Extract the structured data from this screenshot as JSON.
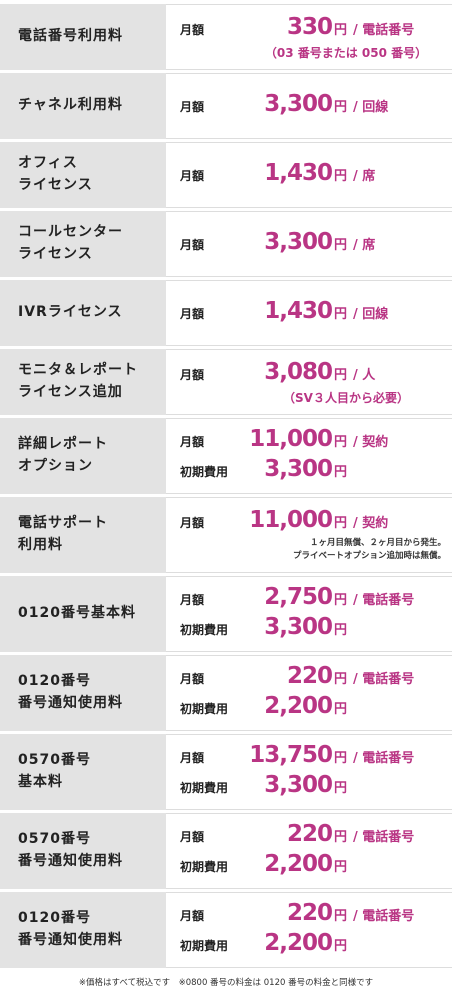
{
  "rows": [
    {
      "label": "電話番号利用料",
      "lines": [
        {
          "term": "月額",
          "amount": "330",
          "unit": "円",
          "per": "/ 電話番号"
        }
      ],
      "note": "（03 番号または 050 番号）"
    },
    {
      "label": "チャネル利用料",
      "lines": [
        {
          "term": "月額",
          "amount": "3,300",
          "unit": "円",
          "per": "/ 回線"
        }
      ]
    },
    {
      "label": "オフィス\nライセンス",
      "lines": [
        {
          "term": "月額",
          "amount": "1,430",
          "unit": "円",
          "per": "/ 席"
        }
      ]
    },
    {
      "label": "コールセンター\nライセンス",
      "lines": [
        {
          "term": "月額",
          "amount": "3,300",
          "unit": "円",
          "per": "/ 席"
        }
      ]
    },
    {
      "label": "IVRライセンス",
      "lines": [
        {
          "term": "月額",
          "amount": "1,430",
          "unit": "円",
          "per": "/ 回線"
        }
      ]
    },
    {
      "label": "モニタ＆レポート\nライセンス追加",
      "lines": [
        {
          "term": "月額",
          "amount": "3,080",
          "unit": "円",
          "per": "/ 人"
        }
      ],
      "note": "（SV３人目から必要）"
    },
    {
      "label": "詳細レポート\nオプション",
      "lines": [
        {
          "term": "月額",
          "amount": "11,000",
          "unit": "円",
          "per": "/ 契約"
        },
        {
          "term": "初期費用",
          "amount": "3,300",
          "unit": "円"
        }
      ]
    },
    {
      "label": "電話サポート\n利用料",
      "lines": [
        {
          "term": "月額",
          "amount": "11,000",
          "unit": "円",
          "per": "/ 契約"
        }
      ],
      "note": "１ヶ月目無償、２ヶ月目から発生。\nプライベートオプション追加時は無償。"
    },
    {
      "label": "0120番号基本料",
      "lines": [
        {
          "term": "月額",
          "amount": "2,750",
          "unit": "円",
          "per": "/ 電話番号"
        },
        {
          "term": "初期費用",
          "amount": "3,300",
          "unit": "円"
        }
      ]
    },
    {
      "label": "0120番号\n番号通知使用料",
      "lines": [
        {
          "term": "月額",
          "amount": "220",
          "unit": "円",
          "per": "/ 電話番号"
        },
        {
          "term": "初期費用",
          "amount": "2,200",
          "unit": "円"
        }
      ]
    },
    {
      "label": "0570番号\n基本料",
      "lines": [
        {
          "term": "月額",
          "amount": "13,750",
          "unit": "円",
          "per": "/ 電話番号"
        },
        {
          "term": "初期費用",
          "amount": "3,300",
          "unit": "円"
        }
      ]
    },
    {
      "label": "0570番号\n番号通知使用料",
      "lines": [
        {
          "term": "月額",
          "amount": "220",
          "unit": "円",
          "per": "/ 電話番号"
        },
        {
          "term": "初期費用",
          "amount": "2,200",
          "unit": "円"
        }
      ]
    },
    {
      "label": "0120番号\n番号通知使用料",
      "lines": [
        {
          "term": "月額",
          "amount": "220",
          "unit": "円",
          "per": "/ 電話番号"
        },
        {
          "term": "初期費用",
          "amount": "2,200",
          "unit": "円"
        }
      ]
    }
  ],
  "footer": "※価格はすべて税込です　※0800 番号の料金は 0120 番号の料金と同様です"
}
